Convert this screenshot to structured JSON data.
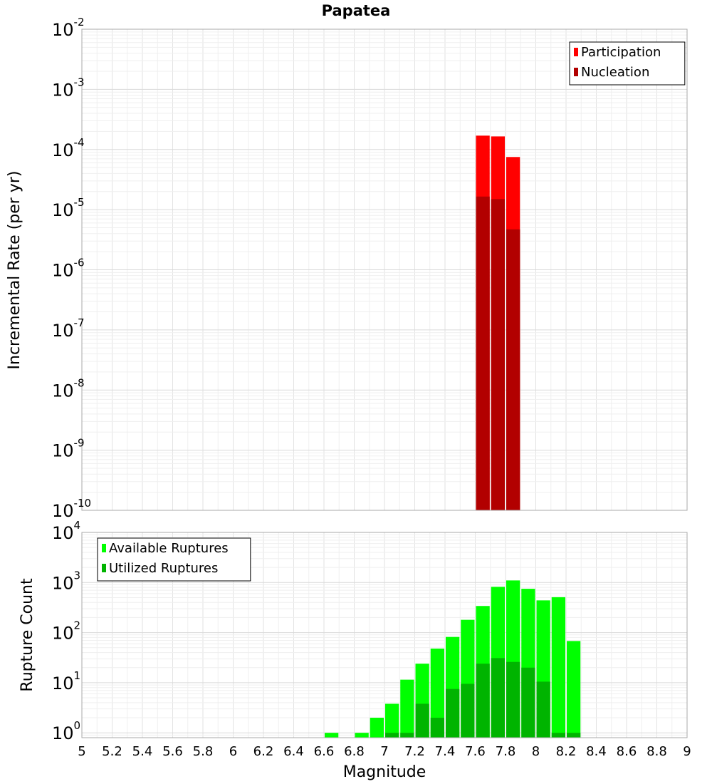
{
  "chart_data": [
    {
      "type": "bar",
      "title": "Papatea",
      "xlabel": "",
      "ylabel": "Incremental Rate (per yr)",
      "xlim": [
        5,
        9
      ],
      "ylim": [
        1e-10,
        0.01
      ],
      "yscale": "log",
      "ytick_exponents": [
        -10,
        -9,
        -8,
        -7,
        -6,
        -5,
        -4,
        -3,
        -2
      ],
      "grid": true,
      "legend_position": "top-right",
      "bin_width": 0.1,
      "series": [
        {
          "name": "Participation",
          "color": "#ff0000",
          "x": [
            7.65,
            7.75,
            7.85
          ],
          "values": [
            0.00017,
            0.000165,
            7.5e-05
          ]
        },
        {
          "name": "Nucleation",
          "color": "#b20000",
          "x": [
            7.65,
            7.75,
            7.85
          ],
          "values": [
            1.65e-05,
            1.5e-05,
            4.7e-06
          ]
        }
      ]
    },
    {
      "type": "bar",
      "title": "",
      "xlabel": "Magnitude",
      "ylabel": "Rupture Count",
      "xlim": [
        5,
        9
      ],
      "ylim": [
        0.8,
        10000.0
      ],
      "yscale": "log",
      "ytick_exponents": [
        0,
        1,
        2,
        3,
        4
      ],
      "grid": true,
      "legend_position": "top-left",
      "bin_width": 0.1,
      "xtick_labels": [
        "5",
        "5.2",
        "5.4",
        "5.6",
        "5.8",
        "6",
        "6.2",
        "6.4",
        "6.6",
        "6.8",
        "7",
        "7.2",
        "7.4",
        "7.6",
        "7.8",
        "8",
        "8.2",
        "8.4",
        "8.6",
        "8.8",
        "9"
      ],
      "series": [
        {
          "name": "Available Ruptures",
          "color": "#00ff00",
          "x": [
            6.65,
            6.85,
            6.95,
            7.05,
            7.15,
            7.25,
            7.35,
            7.45,
            7.55,
            7.65,
            7.75,
            7.85,
            7.95,
            8.05,
            8.15,
            8.25
          ],
          "values": [
            1,
            1,
            2,
            3.8,
            11.5,
            24,
            48,
            82,
            180,
            340,
            820,
            1100,
            750,
            440,
            510,
            68
          ]
        },
        {
          "name": "Utilized Ruptures",
          "color": "#00b400",
          "x": [
            7.05,
            7.15,
            7.25,
            7.35,
            7.45,
            7.55,
            7.65,
            7.75,
            7.85,
            7.95,
            8.05,
            8.15,
            8.25
          ],
          "values": [
            1,
            1,
            3.8,
            2,
            7.5,
            9.5,
            24,
            31,
            26,
            20,
            10.5,
            1,
            1
          ]
        }
      ]
    }
  ]
}
